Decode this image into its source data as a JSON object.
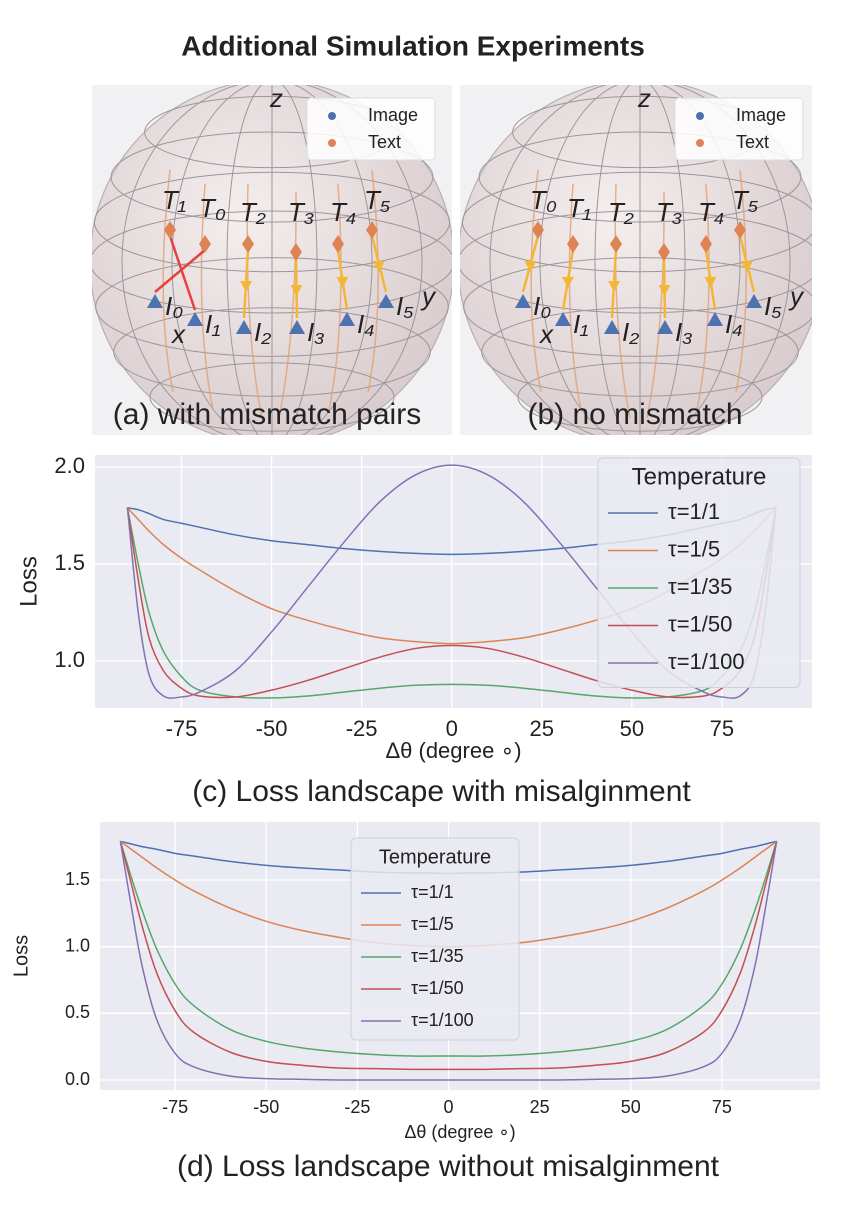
{
  "title": "Additional Simulation Experiments",
  "panels": [
    {
      "caption": "(a) with mismatch pairs",
      "axes": [
        "z",
        "y",
        "x"
      ],
      "legend": [
        "Image",
        "Text"
      ],
      "text_labels": [
        "T₁",
        "T₀",
        "T₂",
        "T₃",
        "T₄",
        "T₅"
      ],
      "image_labels": [
        "I₀",
        "I₁",
        "I₂",
        "I₃",
        "I₄",
        "I₅"
      ]
    },
    {
      "caption": "(b) no mismatch",
      "axes": [
        "z",
        "y",
        "x"
      ],
      "legend": [
        "Image",
        "Text"
      ],
      "text_labels": [
        "T₀",
        "T₁",
        "T₂",
        "T₃",
        "T₄",
        "T₅"
      ],
      "image_labels": [
        "I₀",
        "I₁",
        "I₂",
        "I₃",
        "I₄",
        "I₅"
      ]
    }
  ],
  "chart_data": [
    {
      "type": "line",
      "caption": "(c) Loss landscape with misalginment",
      "xlabel": "Δθ (degree ∘)",
      "ylabel": "Loss",
      "legend_title": "Temperature",
      "legend": "upper right",
      "grid": true,
      "xlim": [
        -99,
        100
      ],
      "ylim": [
        0.758,
        2.062
      ],
      "xticks": [
        -75,
        -50,
        -25,
        0,
        25,
        50,
        75
      ],
      "yticks": [
        {
          "value": 1,
          "label": "1.0"
        },
        1.5,
        {
          "value": 2,
          "label": "2.0"
        }
      ],
      "x": [
        -90,
        -87,
        -84,
        -80,
        -75,
        -70,
        -60,
        -50,
        -40,
        -30,
        -20,
        -10,
        0,
        10,
        20,
        30,
        40,
        50,
        60,
        70,
        75,
        80,
        84,
        87,
        90
      ],
      "series": [
        {
          "name": "τ=1/1",
          "color": "#4c72b0",
          "values": [
            1.79,
            1.78,
            1.76,
            1.73,
            1.71,
            1.69,
            1.65,
            1.62,
            1.6,
            1.58,
            1.565,
            1.555,
            1.55,
            1.555,
            1.565,
            1.58,
            1.6,
            1.62,
            1.65,
            1.69,
            1.71,
            1.73,
            1.76,
            1.78,
            1.79
          ]
        },
        {
          "name": "τ=1/5",
          "color": "#dd8452",
          "values": [
            1.79,
            1.73,
            1.67,
            1.6,
            1.53,
            1.47,
            1.36,
            1.27,
            1.21,
            1.16,
            1.12,
            1.1,
            1.09,
            1.1,
            1.12,
            1.16,
            1.21,
            1.27,
            1.36,
            1.47,
            1.53,
            1.6,
            1.67,
            1.73,
            1.79
          ]
        },
        {
          "name": "τ=1/35",
          "color": "#55a868",
          "values": [
            1.79,
            1.5,
            1.25,
            1.05,
            0.92,
            0.85,
            0.815,
            0.81,
            0.82,
            0.84,
            0.86,
            0.875,
            0.88,
            0.875,
            0.86,
            0.84,
            0.82,
            0.81,
            0.815,
            0.85,
            0.92,
            1.05,
            1.25,
            1.5,
            1.79
          ]
        },
        {
          "name": "τ=1/50",
          "color": "#c44e52",
          "values": [
            1.79,
            1.42,
            1.12,
            0.95,
            0.86,
            0.82,
            0.815,
            0.85,
            0.9,
            0.96,
            1.02,
            1.065,
            1.08,
            1.065,
            1.02,
            0.96,
            0.9,
            0.85,
            0.815,
            0.82,
            0.86,
            0.95,
            1.12,
            1.42,
            1.79
          ]
        },
        {
          "name": "τ=1/100",
          "color": "#8172b3",
          "values": [
            1.79,
            1.25,
            0.93,
            0.82,
            0.815,
            0.84,
            0.95,
            1.15,
            1.38,
            1.61,
            1.82,
            1.96,
            2.01,
            1.96,
            1.82,
            1.61,
            1.38,
            1.15,
            0.95,
            0.84,
            0.815,
            0.82,
            0.93,
            1.25,
            1.79
          ]
        }
      ]
    },
    {
      "type": "line",
      "caption": "(d) Loss landscape without misalginment",
      "xlabel": "Δθ (degree ∘)",
      "ylabel": "Loss",
      "legend_title": "Temperature",
      "legend": "upper center",
      "grid": true,
      "xlim": [
        -95.6,
        101.9
      ],
      "ylim": [
        -0.075,
        1.935
      ],
      "xticks": [
        -75,
        -50,
        -25,
        0,
        25,
        50,
        75
      ],
      "yticks": [
        {
          "value": 0,
          "label": "0.0"
        },
        0.5,
        {
          "value": 1,
          "label": "1.0"
        },
        1.5
      ],
      "x": [
        -90,
        -87,
        -84,
        -80,
        -75,
        -70,
        -60,
        -50,
        -40,
        -30,
        -20,
        -10,
        0,
        10,
        20,
        30,
        40,
        50,
        60,
        70,
        75,
        80,
        84,
        87,
        90
      ],
      "series": [
        {
          "name": "τ=1/1",
          "color": "#4c72b0",
          "values": [
            1.79,
            1.77,
            1.75,
            1.73,
            1.7,
            1.68,
            1.64,
            1.61,
            1.59,
            1.575,
            1.56,
            1.553,
            1.55,
            1.553,
            1.56,
            1.575,
            1.59,
            1.61,
            1.64,
            1.68,
            1.7,
            1.73,
            1.75,
            1.77,
            1.79
          ]
        },
        {
          "name": "τ=1/5",
          "color": "#dd8452",
          "values": [
            1.79,
            1.73,
            1.67,
            1.59,
            1.5,
            1.42,
            1.29,
            1.19,
            1.12,
            1.07,
            1.03,
            1.01,
            1.0,
            1.01,
            1.03,
            1.07,
            1.12,
            1.19,
            1.29,
            1.42,
            1.5,
            1.59,
            1.67,
            1.73,
            1.79
          ]
        },
        {
          "name": "τ=1/35",
          "color": "#55a868",
          "values": [
            1.79,
            1.52,
            1.27,
            0.98,
            0.72,
            0.56,
            0.38,
            0.29,
            0.24,
            0.21,
            0.19,
            0.18,
            0.18,
            0.18,
            0.19,
            0.21,
            0.24,
            0.29,
            0.38,
            0.56,
            0.72,
            0.98,
            1.27,
            1.52,
            1.79
          ]
        },
        {
          "name": "τ=1/50",
          "color": "#c44e52",
          "values": [
            1.79,
            1.47,
            1.15,
            0.8,
            0.52,
            0.36,
            0.21,
            0.14,
            0.11,
            0.09,
            0.085,
            0.08,
            0.08,
            0.08,
            0.085,
            0.09,
            0.11,
            0.14,
            0.21,
            0.36,
            0.52,
            0.8,
            1.15,
            1.47,
            1.79
          ]
        },
        {
          "name": "τ=1/100",
          "color": "#8172b3",
          "values": [
            1.79,
            1.3,
            0.85,
            0.45,
            0.2,
            0.1,
            0.03,
            0.01,
            0.005,
            0,
            0,
            0,
            0,
            0,
            0,
            0,
            0.005,
            0.01,
            0.03,
            0.1,
            0.2,
            0.45,
            0.85,
            1.3,
            1.79
          ]
        }
      ]
    }
  ]
}
